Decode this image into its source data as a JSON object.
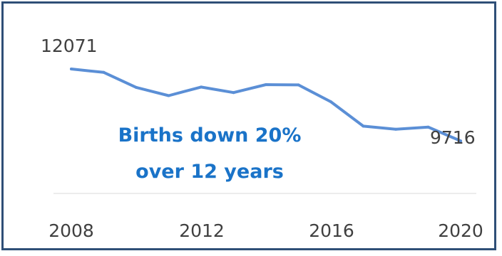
{
  "chart_data": {
    "type": "line",
    "title": "",
    "xlabel": "",
    "ylabel": "",
    "x": [
      2008,
      2009,
      2010,
      2011,
      2012,
      2013,
      2014,
      2015,
      2016,
      2017,
      2018,
      2019,
      2020
    ],
    "series": [
      {
        "values": [
          12071,
          11960,
          11470,
          11200,
          11480,
          11300,
          11560,
          11550,
          11000,
          10200,
          10100,
          10170,
          9716
        ]
      }
    ],
    "ylim": [
      8000,
      12700
    ],
    "x_ticks": [
      "2008",
      "2012",
      "2016",
      "2020"
    ],
    "data_labels": [
      {
        "x": 2008,
        "text": "12071"
      },
      {
        "x": 2020,
        "text": "9716"
      }
    ],
    "annotation": {
      "lines": [
        "Births down 20%",
        "over 12 years"
      ]
    },
    "grid": false,
    "legend": "none",
    "colors": {
      "line": "#5b8fd6",
      "annotation": "#1a73c8",
      "frame": "#2f4f77",
      "text": "#404040",
      "axis": "#d9d9d9"
    }
  }
}
